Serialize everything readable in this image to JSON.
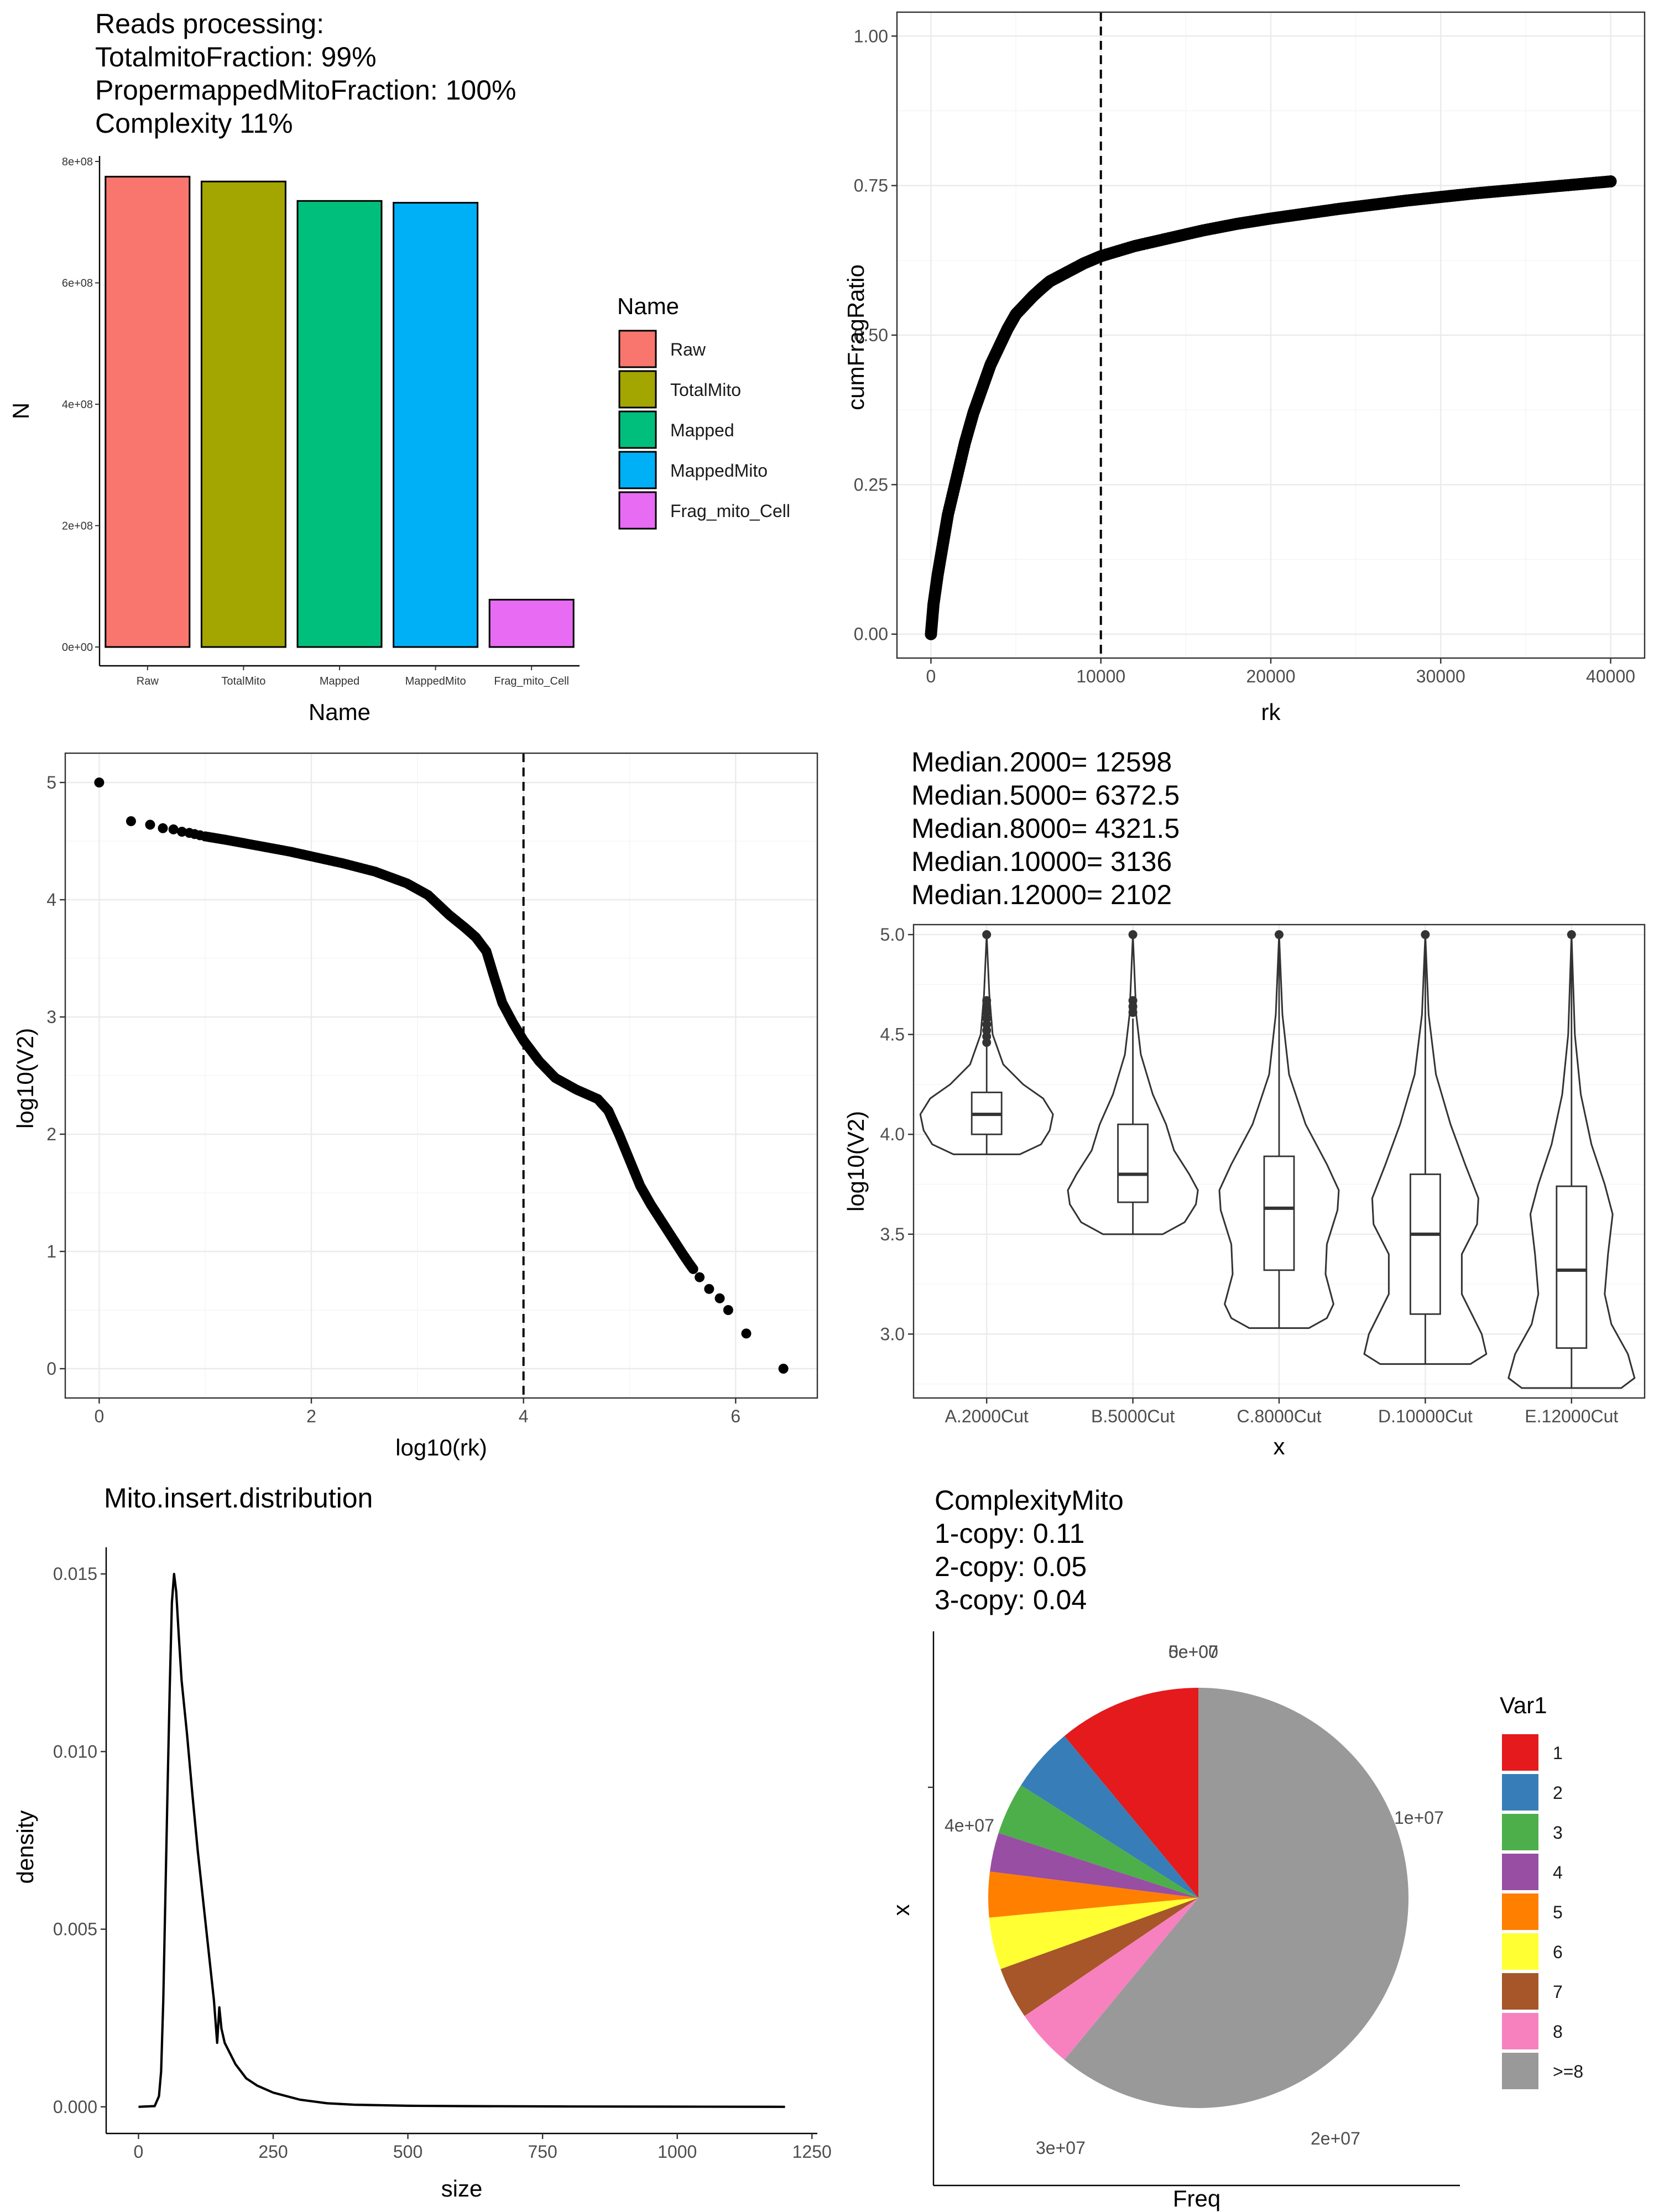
{
  "chart_data": [
    {
      "panel": "reads-processing",
      "type": "bar",
      "title_lines": [
        "Reads processing:",
        "TotalmitoFraction: 99%",
        "PropermappedMitoFraction: 100%",
        "Complexity 11%"
      ],
      "xlabel": "Name",
      "ylabel": "N",
      "categories": [
        "Raw",
        "TotalMito",
        "Mapped",
        "MappedMito",
        "Frag_mito_Cell"
      ],
      "values": [
        775000000,
        767000000,
        735000000,
        732000000,
        78000000
      ],
      "colors": [
        "#F8766D",
        "#A3A500",
        "#00BF7D",
        "#00B0F6",
        "#E76BF3"
      ],
      "ylim": [
        0,
        800000000
      ],
      "yticks": [
        0,
        200000000,
        400000000,
        600000000,
        800000000
      ],
      "ytick_labels": [
        "0e+00",
        "2e+08",
        "4e+08",
        "6e+08",
        "8e+08"
      ],
      "legend": {
        "title": "Name",
        "entries": [
          "Raw",
          "TotalMito",
          "Mapped",
          "MappedMito",
          "Frag_mito_Cell"
        ],
        "position": "right"
      },
      "grid": false
    },
    {
      "panel": "cum-frag-ratio",
      "type": "scatter",
      "xlabel": "rk",
      "ylabel": "cumFragRatio",
      "xlim": [
        -2000,
        42000
      ],
      "ylim": [
        -0.04,
        1.04
      ],
      "xticks": [
        0,
        10000,
        20000,
        30000,
        40000
      ],
      "xtick_labels": [
        "0",
        "10000",
        "20000",
        "30000",
        "40000"
      ],
      "yticks": [
        0,
        0.25,
        0.5,
        0.75,
        1.0
      ],
      "ytick_labels": [
        "0.00",
        "0.25",
        "0.50",
        "0.75",
        "1.00"
      ],
      "vline": 10000,
      "x": [
        0,
        150,
        400,
        700,
        1000,
        1500,
        2000,
        2500,
        3000,
        3500,
        4000,
        4500,
        5000,
        5500,
        6000,
        6500,
        7000,
        8000,
        9000,
        10000,
        12000,
        14000,
        16000,
        18000,
        20000,
        22000,
        24000,
        26000,
        28000,
        30000,
        32000,
        34000,
        36000,
        38000,
        40000
      ],
      "y": [
        0.0,
        0.05,
        0.1,
        0.15,
        0.2,
        0.26,
        0.32,
        0.37,
        0.41,
        0.45,
        0.48,
        0.51,
        0.535,
        0.55,
        0.565,
        0.578,
        0.59,
        0.605,
        0.62,
        0.632,
        0.649,
        0.662,
        0.675,
        0.686,
        0.695,
        0.703,
        0.711,
        0.718,
        0.725,
        0.731,
        0.737,
        0.742,
        0.747,
        0.752,
        0.757
      ],
      "grid": true
    },
    {
      "panel": "log-rank",
      "type": "scatter",
      "xlabel": "log10(rk)",
      "ylabel": "log10(V2)",
      "xlim": [
        -0.32,
        6.77
      ],
      "ylim": [
        -0.25,
        5.25
      ],
      "xticks": [
        0,
        2,
        4,
        6
      ],
      "xtick_labels": [
        "0",
        "2",
        "4",
        "6"
      ],
      "yticks": [
        0,
        1,
        2,
        3,
        4,
        5
      ],
      "ytick_labels": [
        "0",
        "1",
        "2",
        "3",
        "4",
        "5"
      ],
      "vline": 4,
      "x": [
        0,
        0.3,
        0.48,
        0.6,
        0.7,
        0.78,
        0.85,
        0.9,
        0.95,
        1.0,
        1.2,
        1.5,
        1.8,
        2.0,
        2.3,
        2.6,
        2.9,
        3.1,
        3.3,
        3.45,
        3.55,
        3.65,
        3.72,
        3.8,
        3.9,
        4.0,
        4.15,
        4.3,
        4.5,
        4.7,
        4.8,
        4.9,
        5.0,
        5.1,
        5.2,
        5.3,
        5.4,
        5.5,
        5.56,
        5.6,
        5.66,
        5.75,
        5.85,
        5.93,
        6.1,
        6.45
      ],
      "y": [
        5.0,
        4.67,
        4.64,
        4.61,
        4.6,
        4.58,
        4.57,
        4.56,
        4.55,
        4.54,
        4.51,
        4.46,
        4.41,
        4.37,
        4.31,
        4.24,
        4.14,
        4.04,
        3.87,
        3.76,
        3.68,
        3.56,
        3.35,
        3.12,
        2.95,
        2.8,
        2.62,
        2.48,
        2.38,
        2.3,
        2.2,
        2.0,
        1.78,
        1.56,
        1.4,
        1.26,
        1.12,
        0.98,
        0.9,
        0.85,
        0.78,
        0.68,
        0.6,
        0.5,
        0.3,
        0.0
      ],
      "grid": true
    },
    {
      "panel": "median-violin",
      "type": "violin",
      "title_lines": [
        "Median.2000= 12598",
        "Median.5000= 6372.5",
        "Median.8000= 4321.5",
        "Median.10000= 3136",
        "Median.12000= 2102"
      ],
      "xlabel": "x",
      "ylabel": "log10(V2)",
      "categories": [
        "A.2000Cut",
        "B.5000Cut",
        "C.8000Cut",
        "D.10000Cut",
        "E.12000Cut"
      ],
      "ylim": [
        2.68,
        5.05
      ],
      "yticks": [
        3.0,
        3.5,
        4.0,
        4.5,
        5.0
      ],
      "ytick_labels": [
        "3.0",
        "3.5",
        "4.0",
        "4.5",
        "5.0"
      ],
      "boxes": [
        {
          "min": 3.9,
          "q1": 4.0,
          "median": 4.1,
          "q3": 4.21,
          "whisker_hi": 4.44,
          "max": 5.0,
          "outliers": [
            4.46,
            4.49,
            4.52,
            4.55,
            4.58,
            4.61,
            4.64,
            4.67,
            5.0
          ]
        },
        {
          "min": 3.5,
          "q1": 3.66,
          "median": 3.8,
          "q3": 4.05,
          "whisker_hi": 4.58,
          "max": 5.0,
          "outliers": [
            4.61,
            4.64,
            4.67,
            5.0
          ]
        },
        {
          "min": 3.03,
          "q1": 3.32,
          "median": 3.63,
          "q3": 3.89,
          "whisker_hi": 5.0,
          "max": 5.0,
          "outliers": [
            5.0
          ]
        },
        {
          "min": 2.85,
          "q1": 3.1,
          "median": 3.5,
          "q3": 3.8,
          "whisker_hi": 5.0,
          "max": 5.0,
          "outliers": [
            5.0
          ]
        },
        {
          "min": 2.73,
          "q1": 2.93,
          "median": 3.32,
          "q3": 3.74,
          "whisker_hi": 5.0,
          "max": 5.0,
          "outliers": [
            5.0
          ]
        }
      ],
      "grid": true
    },
    {
      "panel": "insert-distribution",
      "type": "line",
      "title": "Mito.insert.distribution",
      "xlabel": "size",
      "ylabel": "density",
      "xlim": [
        -60,
        1260
      ],
      "ylim": [
        -0.00075,
        0.01575
      ],
      "xticks": [
        0,
        250,
        500,
        750,
        1000,
        1250
      ],
      "xtick_labels": [
        "0",
        "250",
        "500",
        "750",
        "1000",
        "1250"
      ],
      "yticks": [
        0,
        0.005,
        0.01,
        0.015
      ],
      "ytick_labels": [
        "0.000",
        "0.005",
        "0.010",
        "0.015"
      ],
      "x": [
        0,
        30,
        38,
        42,
        46,
        50,
        54,
        58,
        62,
        66,
        70,
        75,
        80,
        90,
        100,
        110,
        120,
        130,
        140,
        146,
        150,
        154,
        160,
        170,
        180,
        190,
        200,
        220,
        250,
        300,
        350,
        400,
        500,
        600,
        800,
        1000,
        1200
      ],
      "y": [
        0.0,
        2e-05,
        0.0003,
        0.001,
        0.003,
        0.006,
        0.009,
        0.0118,
        0.0142,
        0.015,
        0.0145,
        0.0132,
        0.012,
        0.0105,
        0.0088,
        0.0072,
        0.0058,
        0.0044,
        0.003,
        0.0018,
        0.0028,
        0.0022,
        0.0018,
        0.0015,
        0.0012,
        0.001,
        0.0008,
        0.0006,
        0.0004,
        0.0002,
        0.0001,
        6e-05,
        3e-05,
        2e-05,
        1e-05,
        5e-06,
        0.0
      ],
      "grid": false
    },
    {
      "panel": "complexity-mito",
      "type": "pie",
      "title_lines": [
        "ComplexityMito",
        " 1-copy: 0.11",
        " 2-copy: 0.05",
        " 3-copy: 0.04"
      ],
      "xlabel": "Freq",
      "ylabel": "x",
      "categories": [
        "1",
        "2",
        "3",
        "4",
        "5",
        "6",
        "7",
        "8",
        ">=8"
      ],
      "values": [
        0.11,
        0.05,
        0.04,
        0.03,
        0.035,
        0.04,
        0.04,
        0.045,
        0.61
      ],
      "colors": [
        "#E41A1C",
        "#377EB8",
        "#4DAF4A",
        "#984EA3",
        "#FF7F00",
        "#FFFF33",
        "#A65628",
        "#F781BF",
        "#999999"
      ],
      "tick_labels": [
        "5e+07",
        "0e+00",
        "1e+07",
        "2e+07",
        "3e+07",
        "4e+07"
      ],
      "legend": {
        "title": "Var1",
        "entries": [
          "1",
          "2",
          "3",
          "4",
          "5",
          "6",
          "7",
          "8",
          ">=8"
        ],
        "position": "right"
      }
    }
  ]
}
